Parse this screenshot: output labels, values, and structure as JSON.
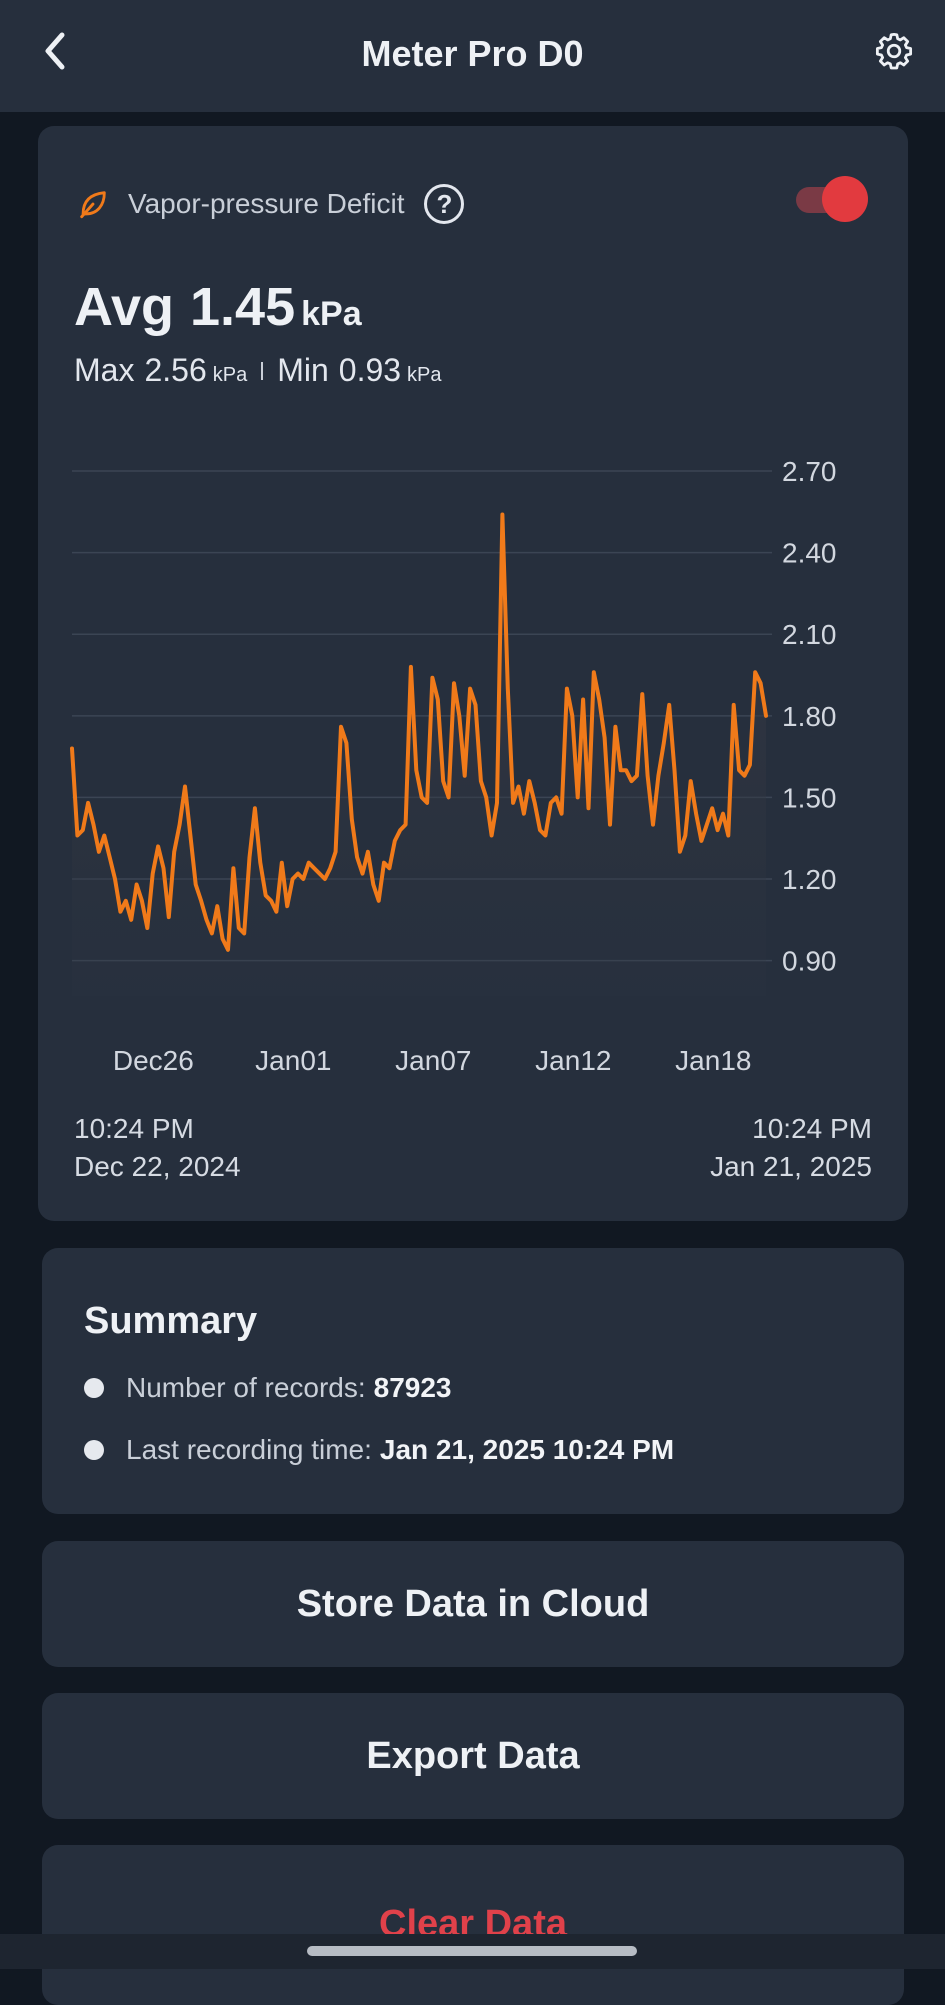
{
  "header": {
    "title": "Meter Pro D0",
    "back_icon": "chevron-left-icon",
    "settings_icon": "gear-icon"
  },
  "metric": {
    "icon": "leaf-icon",
    "label": "Vapor-pressure Deficit",
    "help_glyph": "?",
    "toggle_on": true,
    "avg_label": "Avg",
    "avg_value": "1.45",
    "unit": "kPa",
    "max_label": "Max",
    "max_value": "2.56",
    "min_label": "Min",
    "min_value": "0.93"
  },
  "chart_data": {
    "type": "area",
    "x_tick_labels": [
      "Dec26",
      "Jan01",
      "Jan07",
      "Jan12",
      "Jan18"
    ],
    "y_tick_labels": [
      "2.70",
      "2.40",
      "2.10",
      "1.80",
      "1.50",
      "1.20",
      "0.90"
    ],
    "ylim": [
      0.77,
      2.7
    ],
    "grid": true,
    "x_range_days": [
      0,
      30
    ],
    "line_color": "#f07a1a",
    "series": [
      {
        "values": [
          [
            0.0,
            1.68
          ],
          [
            0.2,
            1.36
          ],
          [
            0.4,
            1.38
          ],
          [
            0.6,
            1.48
          ],
          [
            0.8,
            1.4
          ],
          [
            1.0,
            1.3
          ],
          [
            1.2,
            1.36
          ],
          [
            1.4,
            1.28
          ],
          [
            1.6,
            1.2
          ],
          [
            1.8,
            1.08
          ],
          [
            2.0,
            1.12
          ],
          [
            2.2,
            1.05
          ],
          [
            2.4,
            1.18
          ],
          [
            2.6,
            1.12
          ],
          [
            2.8,
            1.02
          ],
          [
            3.0,
            1.22
          ],
          [
            3.2,
            1.32
          ],
          [
            3.4,
            1.24
          ],
          [
            3.6,
            1.06
          ],
          [
            3.8,
            1.3
          ],
          [
            4.0,
            1.4
          ],
          [
            4.2,
            1.54
          ],
          [
            4.4,
            1.36
          ],
          [
            4.6,
            1.18
          ],
          [
            4.8,
            1.12
          ],
          [
            5.0,
            1.05
          ],
          [
            5.2,
            1.0
          ],
          [
            5.4,
            1.1
          ],
          [
            5.6,
            0.98
          ],
          [
            5.8,
            0.94
          ],
          [
            6.0,
            1.24
          ],
          [
            6.2,
            1.02
          ],
          [
            6.4,
            1.0
          ],
          [
            6.6,
            1.28
          ],
          [
            6.8,
            1.46
          ],
          [
            7.0,
            1.26
          ],
          [
            7.2,
            1.14
          ],
          [
            7.4,
            1.12
          ],
          [
            7.6,
            1.08
          ],
          [
            7.8,
            1.26
          ],
          [
            8.0,
            1.1
          ],
          [
            8.2,
            1.2
          ],
          [
            8.4,
            1.22
          ],
          [
            8.6,
            1.2
          ],
          [
            8.8,
            1.26
          ],
          [
            9.0,
            1.24
          ],
          [
            9.2,
            1.22
          ],
          [
            9.4,
            1.2
          ],
          [
            9.6,
            1.24
          ],
          [
            9.8,
            1.3
          ],
          [
            10.0,
            1.76
          ],
          [
            10.2,
            1.7
          ],
          [
            10.4,
            1.42
          ],
          [
            10.6,
            1.28
          ],
          [
            10.8,
            1.22
          ],
          [
            11.0,
            1.3
          ],
          [
            11.2,
            1.18
          ],
          [
            11.4,
            1.12
          ],
          [
            11.6,
            1.26
          ],
          [
            11.8,
            1.24
          ],
          [
            12.0,
            1.34
          ],
          [
            12.2,
            1.38
          ],
          [
            12.4,
            1.4
          ],
          [
            12.6,
            1.98
          ],
          [
            12.8,
            1.6
          ],
          [
            13.0,
            1.5
          ],
          [
            13.2,
            1.48
          ],
          [
            13.4,
            1.94
          ],
          [
            13.6,
            1.86
          ],
          [
            13.8,
            1.56
          ],
          [
            14.0,
            1.5
          ],
          [
            14.2,
            1.92
          ],
          [
            14.4,
            1.8
          ],
          [
            14.6,
            1.58
          ],
          [
            14.8,
            1.9
          ],
          [
            15.0,
            1.84
          ],
          [
            15.2,
            1.56
          ],
          [
            15.4,
            1.5
          ],
          [
            15.6,
            1.36
          ],
          [
            15.8,
            1.48
          ],
          [
            16.0,
            2.54
          ],
          [
            16.2,
            1.9
          ],
          [
            16.4,
            1.48
          ],
          [
            16.6,
            1.54
          ],
          [
            16.8,
            1.44
          ],
          [
            17.0,
            1.56
          ],
          [
            17.2,
            1.48
          ],
          [
            17.4,
            1.38
          ],
          [
            17.6,
            1.36
          ],
          [
            17.8,
            1.48
          ],
          [
            18.0,
            1.5
          ],
          [
            18.2,
            1.44
          ],
          [
            18.4,
            1.9
          ],
          [
            18.6,
            1.8
          ],
          [
            18.8,
            1.5
          ],
          [
            19.0,
            1.86
          ],
          [
            19.2,
            1.46
          ],
          [
            19.4,
            1.96
          ],
          [
            19.6,
            1.86
          ],
          [
            19.8,
            1.72
          ],
          [
            20.0,
            1.4
          ],
          [
            20.2,
            1.76
          ],
          [
            20.4,
            1.6
          ],
          [
            20.6,
            1.6
          ],
          [
            20.8,
            1.56
          ],
          [
            21.0,
            1.58
          ],
          [
            21.2,
            1.88
          ],
          [
            21.4,
            1.58
          ],
          [
            21.6,
            1.4
          ],
          [
            21.8,
            1.58
          ],
          [
            22.0,
            1.7
          ],
          [
            22.2,
            1.84
          ],
          [
            22.4,
            1.6
          ],
          [
            22.6,
            1.3
          ],
          [
            22.8,
            1.36
          ],
          [
            23.0,
            1.56
          ],
          [
            23.2,
            1.44
          ],
          [
            23.4,
            1.34
          ],
          [
            23.6,
            1.4
          ],
          [
            23.8,
            1.46
          ],
          [
            24.0,
            1.38
          ],
          [
            24.2,
            1.44
          ],
          [
            24.4,
            1.36
          ],
          [
            24.6,
            1.84
          ],
          [
            24.8,
            1.6
          ],
          [
            25.0,
            1.58
          ],
          [
            25.2,
            1.62
          ],
          [
            25.4,
            1.96
          ],
          [
            25.6,
            1.92
          ],
          [
            25.8,
            1.8
          ]
        ]
      }
    ]
  },
  "range": {
    "start_time": "10:24 PM",
    "start_date": "Dec 22, 2024",
    "end_time": "10:24 PM",
    "end_date": "Jan 21, 2025"
  },
  "summary": {
    "title": "Summary",
    "records_label": "Number of records:",
    "records_value": "87923",
    "last_label": "Last recording time:",
    "last_value": "Jan 21, 2025 10:24 PM"
  },
  "actions": {
    "store": "Store Data in Cloud",
    "export": "Export Data",
    "clear": "Clear Data"
  },
  "colors": {
    "accent": "#f07a1a",
    "danger": "#e0414a",
    "toggle": "#e23a3f"
  }
}
